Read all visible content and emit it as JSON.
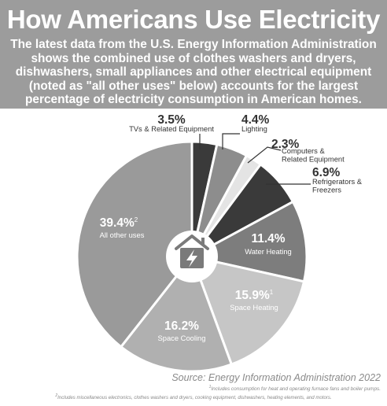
{
  "header": {
    "title": "How Americans Use Electricity",
    "subtitle": "The latest data from the U.S. Energy Information Administration shows the combined use of clothes washers and dryers, dishwashers, small appliances and other electrical equipment (noted as \"all other uses\" below) accounts for the largest percentage of electricity consumption in American homes."
  },
  "chart_data": {
    "type": "pie",
    "title": "How Americans Use Electricity",
    "unit": "%",
    "slices": [
      {
        "label": "TVs & Related Equipment",
        "value": 3.5,
        "value_label": "3.5%",
        "color": "#3a3a3a"
      },
      {
        "label": "Lighting",
        "value": 4.4,
        "value_label": "4.4%",
        "color": "#8d8d8d"
      },
      {
        "label": "Computers & Related Equipment",
        "value": 2.3,
        "value_label": "2.3%",
        "color": "#e4e4e4"
      },
      {
        "label": "Refrigerators & Freezers",
        "value": 6.9,
        "value_label": "6.9%",
        "color": "#3a3a3a"
      },
      {
        "label": "Water Heating",
        "value": 11.4,
        "value_label": "11.4%",
        "color": "#7d7d7d"
      },
      {
        "label": "Space Heating",
        "value": 15.9,
        "value_label": "15.9%",
        "footnote_mark": "1",
        "color": "#c6c6c6"
      },
      {
        "label": "Space Cooling",
        "value": 16.2,
        "value_label": "16.2%",
        "color": "#b0b0b0"
      },
      {
        "label": "All other uses",
        "value": 39.4,
        "value_label": "39.4%",
        "footnote_mark": "2",
        "color": "#9a9a9a"
      }
    ]
  },
  "footer": {
    "source": "Source: Energy Information Administration 2022",
    "footnote_1_mark": "1",
    "footnote_1": "Includes consumption for heat and operating furnace fans and boiler pumps.",
    "footnote_2_mark": "2",
    "footnote_2": "Includes miscellaneous electronics, clothes washers and dryers, cooking equipment, dishwashers, heating elements, and motors."
  }
}
